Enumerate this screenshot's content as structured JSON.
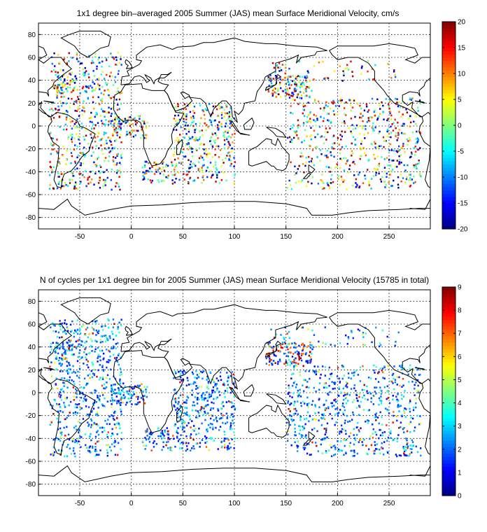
{
  "chart_data": [
    {
      "type": "heatmap",
      "title": "1x1 degree bin–averaged 2005 Summer (JAS) mean Surface Meridional Velocity, cm/s",
      "xlabel": "",
      "ylabel": "",
      "xlim": [
        -90,
        290
      ],
      "ylim": [
        -90,
        90
      ],
      "xticks": [
        -50,
        0,
        50,
        100,
        150,
        200,
        250
      ],
      "yticks": [
        80,
        60,
        40,
        20,
        0,
        -20,
        -40,
        -60,
        -80
      ],
      "grid": true,
      "colorbar": {
        "min": -20,
        "max": 20,
        "ticks": [
          20,
          15,
          10,
          5,
          0,
          -5,
          -10,
          -15,
          -20
        ],
        "colormap": "jet"
      },
      "density_regions": [
        {
          "lon": [
            -80,
            -10
          ],
          "lat": [
            -55,
            65
          ],
          "level": 0.35
        },
        {
          "lon": [
            -75,
            -55
          ],
          "lat": [
            30,
            45
          ],
          "level": 0.9
        },
        {
          "lon": [
            -20,
            15
          ],
          "lat": [
            -10,
            10
          ],
          "level": 0.7
        },
        {
          "lon": [
            40,
            100
          ],
          "lat": [
            -50,
            20
          ],
          "level": 0.45
        },
        {
          "lon": [
            130,
            175
          ],
          "lat": [
            25,
            45
          ],
          "level": 0.8
        },
        {
          "lon": [
            150,
            280
          ],
          "lat": [
            -55,
            25
          ],
          "level": 0.3
        },
        {
          "lon": [
            10,
            40
          ],
          "lat": [
            -50,
            -30
          ],
          "level": 0.6
        },
        {
          "lon": [
            130,
            260
          ],
          "lat": [
            40,
            58
          ],
          "level": 0.15
        }
      ]
    },
    {
      "type": "heatmap",
      "title": "N of cycles per 1x1 degree bin for 2005 Summer (JAS) mean Surface Meridional Velocity (15785 in total)",
      "xlabel": "",
      "ylabel": "",
      "xlim": [
        -90,
        290
      ],
      "ylim": [
        -90,
        90
      ],
      "xticks": [
        -50,
        0,
        50,
        100,
        150,
        200,
        250
      ],
      "yticks": [
        80,
        60,
        40,
        20,
        0,
        -20,
        -40,
        -60,
        -80
      ],
      "grid": true,
      "colorbar": {
        "min": 0,
        "max": 9,
        "ticks": [
          9,
          8,
          7,
          6,
          5,
          4,
          3,
          2,
          1,
          0
        ],
        "colormap": "jet"
      },
      "density_regions": [
        {
          "lon": [
            -80,
            -10
          ],
          "lat": [
            -55,
            65
          ],
          "level": 0.4
        },
        {
          "lon": [
            -75,
            -55
          ],
          "lat": [
            30,
            45
          ],
          "level": 0.9
        },
        {
          "lon": [
            -20,
            15
          ],
          "lat": [
            -10,
            10
          ],
          "level": 0.7
        },
        {
          "lon": [
            40,
            100
          ],
          "lat": [
            -50,
            20
          ],
          "level": 0.5
        },
        {
          "lon": [
            130,
            175
          ],
          "lat": [
            25,
            45
          ],
          "level": 0.8
        },
        {
          "lon": [
            150,
            280
          ],
          "lat": [
            -55,
            25
          ],
          "level": 0.35
        },
        {
          "lon": [
            10,
            40
          ],
          "lat": [
            -50,
            -30
          ],
          "level": 0.6
        },
        {
          "lon": [
            130,
            260
          ],
          "lat": [
            40,
            58
          ],
          "level": 0.15
        }
      ]
    }
  ]
}
